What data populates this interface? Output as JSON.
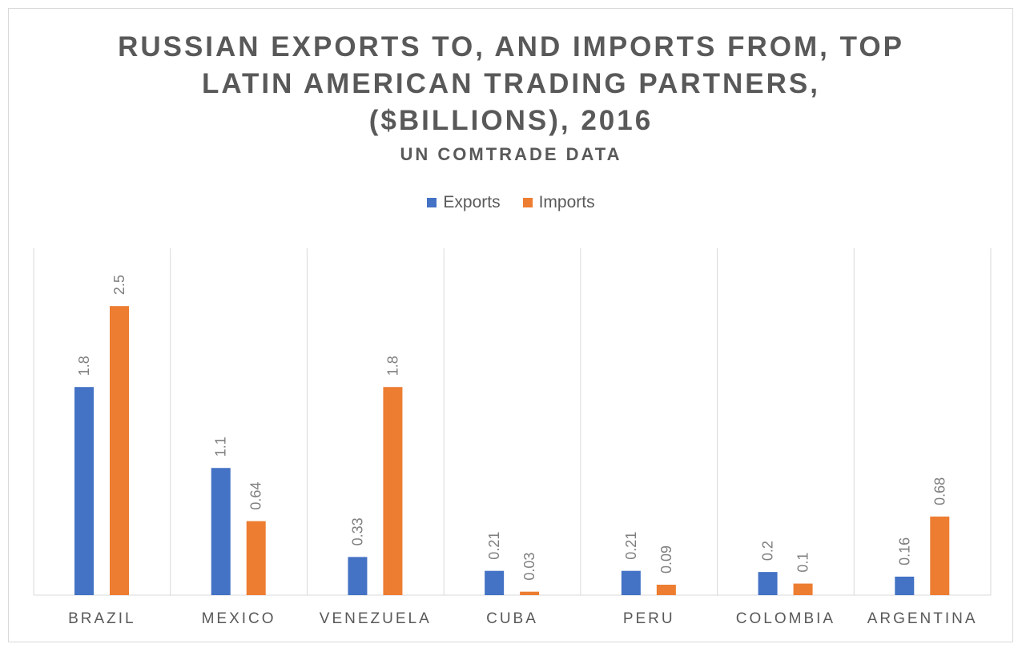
{
  "chart_data": {
    "type": "bar",
    "title": "RUSSIAN EXPORTS TO, AND IMPORTS FROM, TOP LATIN AMERICAN TRADING PARTNERS, ($BILLIONS), 2016",
    "title_lines": [
      "RUSSIAN EXPORTS TO, AND IMPORTS FROM, TOP",
      "LATIN AMERICAN TRADING PARTNERS,",
      "($BILLIONS), 2016"
    ],
    "subtitle": "UN COMTRADE DATA",
    "xlabel": "",
    "ylabel": "",
    "ylim": [
      0,
      3
    ],
    "legend_position": "top",
    "categories": [
      "BRAZIL",
      "MEXICO",
      "VENEZUELA",
      "CUBA",
      "PERU",
      "COLOMBIA",
      "ARGENTINA"
    ],
    "series": [
      {
        "name": "Exports",
        "color": "#4472C4",
        "values": [
          1.8,
          1.1,
          0.33,
          0.21,
          0.21,
          0.2,
          0.16
        ],
        "labels": [
          "1.8",
          "1.1",
          "0.33",
          "0.21",
          "0.21",
          "0.2",
          "0.16"
        ]
      },
      {
        "name": "Imports",
        "color": "#ED7D31",
        "values": [
          2.5,
          0.64,
          1.8,
          0.03,
          0.09,
          0.1,
          0.68
        ],
        "labels": [
          "2.5",
          "0.64",
          "1.8",
          "0.03",
          "0.09",
          "0.1",
          "0.68"
        ]
      }
    ]
  }
}
